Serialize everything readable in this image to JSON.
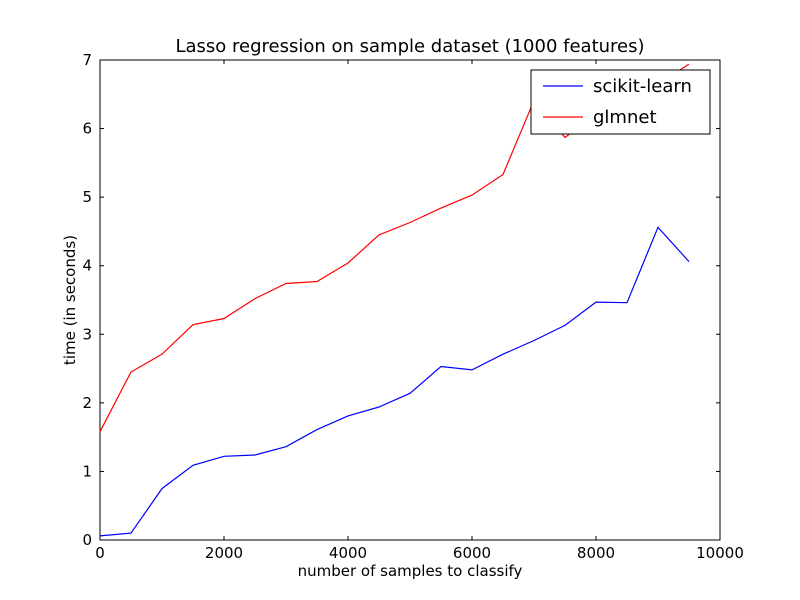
{
  "chart_data": {
    "type": "line",
    "title": "Lasso regression on sample dataset (1000 features)",
    "xlabel": "number of samples to classify",
    "ylabel": "time (in seconds)",
    "xlim": [
      0,
      10000
    ],
    "ylim": [
      0,
      7
    ],
    "xticks": [
      0,
      2000,
      4000,
      6000,
      8000,
      10000
    ],
    "yticks": [
      0,
      1,
      2,
      3,
      4,
      5,
      6,
      7
    ],
    "grid": false,
    "legend_position": "top-right",
    "x": [
      0,
      500,
      1000,
      1500,
      2000,
      2500,
      3000,
      3500,
      4000,
      4500,
      5000,
      5500,
      6000,
      6500,
      7000,
      7500,
      8000,
      8500,
      9000,
      9500
    ],
    "series": [
      {
        "name": "scikit-learn",
        "color": "#0000ff",
        "values": [
          0.06,
          0.1,
          0.75,
          1.09,
          1.22,
          1.24,
          1.36,
          1.61,
          1.81,
          1.94,
          2.14,
          2.53,
          2.48,
          2.71,
          2.91,
          3.13,
          3.47,
          3.46,
          4.56,
          4.06
        ]
      },
      {
        "name": "glmnet",
        "color": "#ff0000",
        "values": [
          1.58,
          2.45,
          2.71,
          3.14,
          3.23,
          3.52,
          3.74,
          3.77,
          4.04,
          4.45,
          4.63,
          4.84,
          5.03,
          5.33,
          6.41,
          5.87,
          6.22,
          6.36,
          6.65,
          6.94
        ]
      }
    ]
  }
}
